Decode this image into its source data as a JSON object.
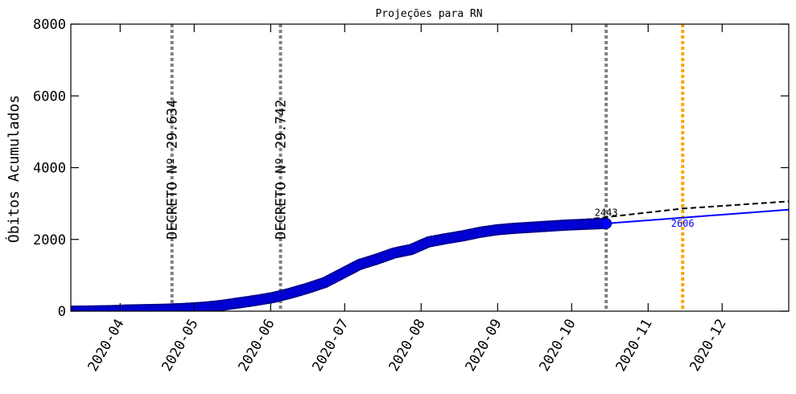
{
  "chart_data": {
    "type": "line",
    "title": "Projeções para RN",
    "xlabel": "",
    "ylabel": "Óbitos Acumulados",
    "x_axis_type": "date",
    "xlim": [
      "2020-03-12",
      "2020-12-28"
    ],
    "ylim": [
      0,
      8000
    ],
    "x_ticks": [
      "2020-04",
      "2020-05",
      "2020-06",
      "2020-07",
      "2020-08",
      "2020-09",
      "2020-10",
      "2020-11",
      "2020-12"
    ],
    "y_ticks": [
      0,
      2000,
      4000,
      6000,
      8000
    ],
    "y_tick_labels": [
      "0",
      "2000",
      "4000",
      "6000",
      "8000"
    ],
    "grid": false,
    "legend": "none",
    "series": [
      {
        "style": "observed-markers",
        "color": "#0000ff",
        "edgecolor": "#000080",
        "x": [
          "2020-03-12",
          "2020-03-20",
          "2020-03-28",
          "2020-04-05",
          "2020-04-13",
          "2020-04-20",
          "2020-04-28",
          "2020-05-05",
          "2020-05-12",
          "2020-05-19",
          "2020-05-26",
          "2020-06-02",
          "2020-06-09",
          "2020-06-16",
          "2020-06-23",
          "2020-06-30",
          "2020-07-07",
          "2020-07-14",
          "2020-07-21",
          "2020-07-28",
          "2020-08-04",
          "2020-08-11",
          "2020-08-18",
          "2020-08-25",
          "2020-09-01",
          "2020-09-08",
          "2020-09-15",
          "2020-09-22",
          "2020-09-29",
          "2020-10-06",
          "2020-10-13",
          "2020-10-15"
        ],
        "y": [
          0,
          5,
          15,
          35,
          45,
          55,
          80,
          110,
          160,
          230,
          300,
          380,
          500,
          640,
          800,
          1050,
          1300,
          1450,
          1620,
          1720,
          1930,
          2020,
          2100,
          2200,
          2270,
          2310,
          2340,
          2370,
          2400,
          2420,
          2440,
          2443
        ]
      },
      {
        "style": "projection-solid",
        "color": "#0000ff",
        "x": [
          "2020-10-15",
          "2020-11-15",
          "2020-12-28"
        ],
        "y": [
          2443,
          2606,
          2830
        ]
      },
      {
        "style": "projection-dashed",
        "color": "#000000",
        "x": [
          "2020-09-15",
          "2020-10-15",
          "2020-11-15",
          "2020-12-28"
        ],
        "y": [
          2380,
          2620,
          2860,
          3060
        ]
      }
    ],
    "vertical_lines": [
      {
        "x": "2020-04-22",
        "color": "#808080",
        "label": "DECRETO Nº 29.634"
      },
      {
        "x": "2020-06-05",
        "color": "#808080",
        "label": "DECRETO Nº 29.742"
      },
      {
        "x": "2020-10-15",
        "color": "#808080",
        "label": ""
      },
      {
        "x": "2020-11-15",
        "color": "#ffa500",
        "label": ""
      }
    ],
    "annotations": [
      {
        "text": "2443",
        "x": "2020-10-15",
        "y": 2650,
        "color": "#000000"
      },
      {
        "text": "2606",
        "x": "2020-11-15",
        "y": 2350,
        "color": "#0000ff"
      }
    ]
  }
}
